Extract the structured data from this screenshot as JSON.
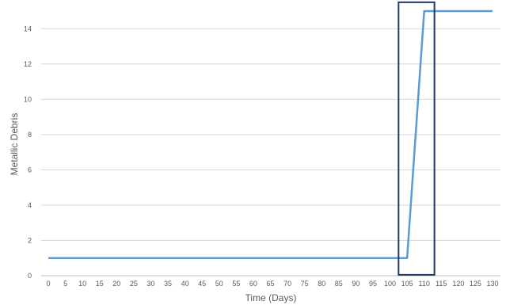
{
  "chart_data": {
    "type": "line",
    "title": "",
    "xlabel": "Time (Days)",
    "ylabel": "Metallic Debris",
    "xlim": [
      0,
      130
    ],
    "ylim": [
      0,
      15
    ],
    "x_ticks": [
      0,
      5,
      10,
      15,
      20,
      25,
      30,
      35,
      40,
      45,
      50,
      55,
      60,
      65,
      70,
      75,
      80,
      85,
      90,
      95,
      100,
      105,
      110,
      115,
      120,
      125,
      130
    ],
    "y_ticks": [
      0,
      2,
      4,
      6,
      8,
      10,
      12,
      14
    ],
    "grid": "horizontal",
    "legend": "none",
    "series": [
      {
        "points": [
          [
            0,
            1
          ],
          [
            105,
            1
          ],
          [
            110,
            15
          ],
          [
            130,
            15
          ]
        ],
        "color": "#5b9bd5"
      }
    ],
    "annotations": [
      {
        "type": "rectangle",
        "x_range": [
          102.5,
          113
        ],
        "y_range": [
          0.05,
          15.5
        ],
        "color": "#1f3864"
      }
    ]
  }
}
